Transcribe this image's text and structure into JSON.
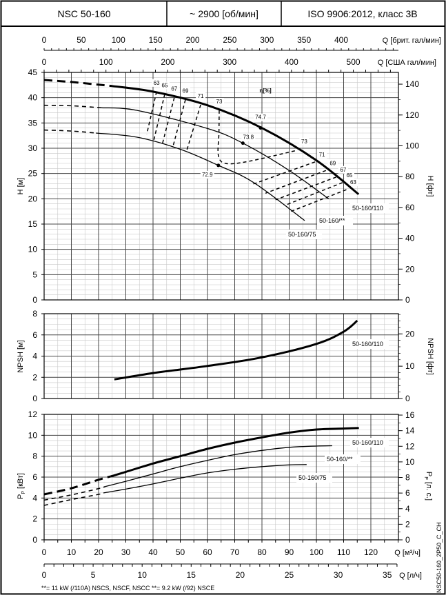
{
  "header": {
    "model": "NSC 50-160",
    "speed": "~ 2900 [об/мин]",
    "standard": "ISO 9906:2012, класс 3B"
  },
  "footnote": "**= 11 kW (/110A) NSCS, NSCF, NSCC   **= 9.2 kW (/92) NSCE",
  "drawing_code": "NSC50-160_2P50_C_CH",
  "chart_data": {
    "type": "line",
    "x_axes": {
      "q_m3h": {
        "label": "Q [м³/ч]",
        "range": [
          0,
          130
        ],
        "ticks": [
          0,
          10,
          20,
          30,
          40,
          50,
          60,
          70,
          80,
          90,
          100,
          110,
          120
        ]
      },
      "q_ls": {
        "label": "Q [л/ч]",
        "ticks": [
          0,
          5,
          10,
          15,
          20,
          25,
          30,
          35
        ]
      },
      "q_imp_gpm": {
        "label": "Q [брит. гал/мин]",
        "ticks": [
          0,
          50,
          100,
          150,
          200,
          250,
          300,
          350,
          400
        ]
      },
      "q_us_gpm": {
        "label": "Q [США гал/мин]",
        "ticks": [
          0,
          100,
          200,
          300,
          400,
          500
        ]
      }
    },
    "head": {
      "ylabel": "H [м]",
      "ylabel_right": "H [фт]",
      "ylim": [
        0,
        45
      ],
      "yticks": [
        0,
        5,
        10,
        15,
        20,
        25,
        30,
        35,
        40,
        45
      ],
      "yticks_right": [
        0,
        20,
        40,
        60,
        80,
        100,
        120,
        140
      ],
      "efficiency_title": "η[%]",
      "series": [
        {
          "name": "50-160/110",
          "bold": true,
          "dashed_until": 25,
          "x": [
            0,
            10,
            25,
            40,
            60,
            80,
            100,
            115.5
          ],
          "y": [
            43.5,
            43.1,
            42.3,
            41.2,
            38.5,
            34.0,
            27.6,
            20.9
          ],
          "bep": {
            "x": 79.5,
            "y": 34.0,
            "label": "74.7"
          }
        },
        {
          "name": "50-160/**",
          "bold": false,
          "dashed_until": 21,
          "x": [
            0,
            10,
            21,
            34,
            60,
            73,
            90,
            104.5
          ],
          "y": [
            38.5,
            38.4,
            38.0,
            37.5,
            33.9,
            31.0,
            25.6,
            20.0
          ],
          "bep": {
            "x": 73,
            "y": 31.0,
            "label": "73.8"
          }
        },
        {
          "name": "50-160/75",
          "bold": false,
          "dashed_until": 19,
          "x": [
            0,
            10,
            19,
            34,
            50,
            64,
            77,
            95.7
          ],
          "y": [
            33.6,
            33.4,
            33.0,
            32.2,
            29.8,
            26.6,
            23.2,
            15.7
          ],
          "bep": {
            "x": 64,
            "y": 26.6,
            "label": "72.9"
          }
        }
      ],
      "efficiency_lines": [
        {
          "label": "63",
          "side": "left",
          "x": [
            41.3,
            37.7
          ],
          "y": [
            41.2,
            32.8
          ]
        },
        {
          "label": "65",
          "side": "left",
          "x": [
            44.3,
            40.3
          ],
          "y": [
            40.7,
            31.6
          ]
        },
        {
          "label": "67",
          "side": "left",
          "x": [
            47.8,
            43.5
          ],
          "y": [
            40.0,
            31.0
          ]
        },
        {
          "label": "69",
          "side": "left",
          "x": [
            51.9,
            47.3
          ],
          "y": [
            39.6,
            30.3
          ]
        },
        {
          "label": "71",
          "side": "left",
          "x": [
            57.5,
            52.4
          ],
          "y": [
            38.6,
            29.6
          ]
        },
        {
          "label": "73",
          "side": "loop",
          "x": [
            64.3,
            64.2,
            64.0,
            66.6,
            75,
            93
          ],
          "y": [
            37.5,
            33,
            28.6,
            27.0,
            27.4,
            29.6
          ],
          "label_right": "73"
        },
        {
          "label": "71",
          "side": "right",
          "x": [
            99.5,
            76.7
          ],
          "y": [
            27.3,
            22.9
          ]
        },
        {
          "label": "69",
          "side": "right",
          "x": [
            103.5,
            81.3
          ],
          "y": [
            25.6,
            21.1
          ]
        },
        {
          "label": "67",
          "side": "right",
          "x": [
            107.3,
            85.0
          ],
          "y": [
            24.3,
            19.8
          ]
        },
        {
          "label": "65",
          "side": "right",
          "x": [
            109.6,
            88.4
          ],
          "y": [
            23.2,
            18.7
          ]
        },
        {
          "label": "63",
          "side": "right",
          "x": [
            111.0,
            90.6
          ],
          "y": [
            21.8,
            17.5
          ]
        }
      ]
    },
    "npsh": {
      "ylabel": "NPSH [м]",
      "ylabel_right": "NPSH [фт]",
      "ylim": [
        0,
        8
      ],
      "yticks": [
        0,
        2,
        4,
        6,
        8
      ],
      "yticks_right": [
        0,
        10,
        20
      ],
      "series": [
        {
          "name": "50-160/110",
          "x": [
            25.8,
            40,
            60,
            80,
            100,
            110,
            115
          ],
          "y": [
            1.8,
            2.4,
            3.07,
            3.88,
            5.15,
            6.3,
            7.35
          ]
        }
      ]
    },
    "power": {
      "ylabel": "P",
      "ylabel_sub": "P",
      "ylabel_unit": "[кВт]",
      "ylabel_right_unit": "[л. с.]",
      "ylim": [
        0,
        12
      ],
      "yticks": [
        0,
        2,
        4,
        6,
        8,
        10,
        12
      ],
      "yticks_right": [
        0,
        2,
        4,
        6,
        8,
        10,
        12,
        14,
        16
      ],
      "series": [
        {
          "name": "50-160/110",
          "bold": true,
          "dashed_until": 24.5,
          "x": [
            0,
            10,
            20,
            24.5,
            30,
            40,
            50,
            60,
            70,
            80,
            90,
            100,
            110,
            115.6
          ],
          "y": [
            4.35,
            4.93,
            5.75,
            6.07,
            6.5,
            7.3,
            8.0,
            8.7,
            9.3,
            9.8,
            10.25,
            10.55,
            10.65,
            10.7
          ]
        },
        {
          "name": "50-160/**",
          "bold": false,
          "dashed_until": 22.5,
          "x": [
            0,
            10,
            20,
            22.5,
            30,
            40,
            50,
            60,
            70,
            80,
            90,
            100,
            105.8
          ],
          "y": [
            3.8,
            4.3,
            4.9,
            5.1,
            5.6,
            6.3,
            7.0,
            7.6,
            8.15,
            8.55,
            8.85,
            8.97,
            9.0
          ]
        },
        {
          "name": "50-160/75",
          "bold": false,
          "dashed_until": 22,
          "x": [
            0,
            10,
            20,
            22,
            30,
            40,
            50,
            60,
            70,
            80,
            90,
            96.4
          ],
          "y": [
            3.3,
            3.85,
            4.35,
            4.5,
            4.85,
            5.35,
            5.9,
            6.4,
            6.75,
            7.0,
            7.17,
            7.2
          ]
        }
      ]
    }
  }
}
